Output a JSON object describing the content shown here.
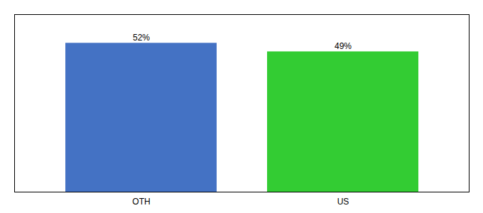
{
  "chart_data": {
    "type": "bar",
    "categories": [
      "OTH",
      "US"
    ],
    "values": [
      52,
      49
    ],
    "value_labels": [
      "52%",
      "49%"
    ],
    "colors": [
      "#4472C4",
      "#33CC33"
    ],
    "ylim": [
      0,
      62
    ],
    "yticks": [],
    "grid": false,
    "data_labels": true,
    "tick_labels": "x"
  }
}
